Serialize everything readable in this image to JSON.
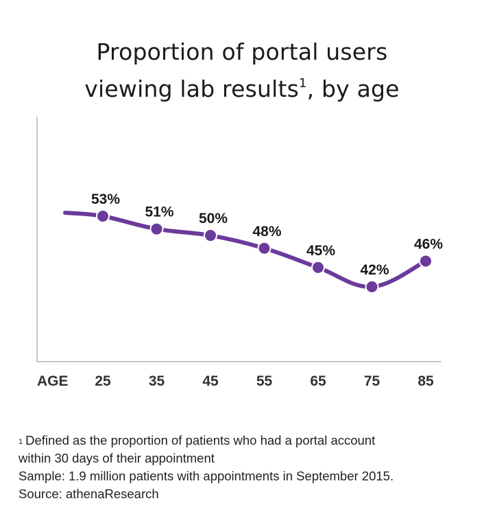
{
  "title_line1": "Proportion of portal users",
  "title_line2": "viewing lab results",
  "title_sup": "1",
  "title_line2_tail": ", by age",
  "colors": {
    "series": "#6b3a9a",
    "axis": "#8c8c8c",
    "text": "#1a1a1a"
  },
  "chart_data": {
    "type": "line",
    "title": "Proportion of portal users viewing lab results¹, by age",
    "xlabel": "AGE",
    "x": [
      25,
      35,
      45,
      55,
      65,
      75,
      85
    ],
    "xticks": [
      "25",
      "35",
      "45",
      "55",
      "65",
      "75",
      "85"
    ],
    "series": [
      {
        "values": [
          53,
          51,
          50,
          48,
          45,
          42,
          46
        ],
        "labels": [
          "53%",
          "51%",
          "50%",
          "48%",
          "45%",
          "42%",
          "46%"
        ]
      }
    ],
    "grid": false,
    "smooth": true
  },
  "footnotes": {
    "note_sup": "1",
    "note_line1": "Defined as the proportion of patients who had a portal account",
    "note_line2": "within 30 days of their appointment",
    "sample": "Sample: 1.9 million patients with appointments in September 2015.",
    "source": "Source: athenaResearch"
  }
}
